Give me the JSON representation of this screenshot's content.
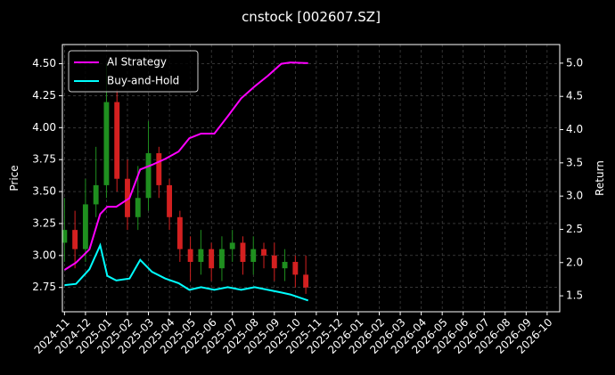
{
  "chart_data": {
    "type": "candlestick-with-returns",
    "title": "cnstock [002607.SZ]",
    "ylabel": "Price",
    "y2label": "Return",
    "grid": true,
    "legend": "upper left",
    "xlim": [
      -0.1,
      23.6
    ],
    "xticks": [
      {
        "value": 0,
        "label": "2024-11"
      },
      {
        "value": 1,
        "label": "2024-12"
      },
      {
        "value": 2,
        "label": "2025-01"
      },
      {
        "value": 3,
        "label": "2025-02"
      },
      {
        "value": 4,
        "label": "2025-03"
      },
      {
        "value": 5,
        "label": "2025-04"
      },
      {
        "value": 6,
        "label": "2025-05"
      },
      {
        "value": 7,
        "label": "2025-06"
      },
      {
        "value": 8,
        "label": "2025-07"
      },
      {
        "value": 9,
        "label": "2025-08"
      },
      {
        "value": 10,
        "label": "2025-09"
      },
      {
        "value": 11,
        "label": "2025-10"
      },
      {
        "value": 12,
        "label": "2025-11"
      },
      {
        "value": 13,
        "label": "2025-12"
      },
      {
        "value": 14,
        "label": "2026-01"
      },
      {
        "value": 15,
        "label": "2026-02"
      },
      {
        "value": 16,
        "label": "2026-03"
      },
      {
        "value": 17,
        "label": "2026-04"
      },
      {
        "value": 18,
        "label": "2026-05"
      },
      {
        "value": 19,
        "label": "2026-06"
      },
      {
        "value": 20,
        "label": "2026-07"
      },
      {
        "value": 21,
        "label": "2026-08"
      },
      {
        "value": 22,
        "label": "2026-09"
      },
      {
        "value": 23,
        "label": "2026-10"
      }
    ],
    "ylim": [
      2.56,
      4.65
    ],
    "yticks": [
      2.75,
      {
        "value": 3.0,
        "label": "3.00"
      },
      3.25,
      {
        "value": 3.5,
        "label": "3.50"
      },
      3.75,
      {
        "value": 4.0,
        "label": "4.00"
      },
      4.25,
      {
        "value": 4.5,
        "label": "4.50"
      }
    ],
    "y2lim": [
      1.26,
      5.28
    ],
    "y2ticks": [
      1.5,
      {
        "value": 2.0,
        "label": "2.0"
      },
      2.5,
      {
        "value": 3.0,
        "label": "3.0"
      },
      3.5,
      {
        "value": 4.0,
        "label": "4.0"
      },
      4.5,
      {
        "value": 5.0,
        "label": "5.0"
      }
    ],
    "candles": {
      "up_color": "#1f8f1f",
      "down_color": "#d42020",
      "x": [
        0,
        0.5,
        1,
        1.5,
        2,
        2.5,
        3,
        3.5,
        4,
        4.5,
        5,
        5.5,
        6,
        6.5,
        7,
        7.5,
        8,
        8.5,
        9,
        9.5,
        10,
        10.5,
        11,
        11.5
      ],
      "open": [
        3.1,
        3.2,
        3.05,
        3.4,
        3.55,
        4.2,
        3.6,
        3.3,
        3.45,
        3.8,
        3.55,
        3.3,
        3.05,
        2.95,
        3.05,
        2.9,
        3.05,
        3.1,
        2.95,
        3.05,
        3.0,
        2.9,
        2.95,
        2.85
      ],
      "high": [
        3.45,
        3.35,
        3.6,
        3.85,
        4.5,
        4.3,
        3.75,
        3.7,
        4.05,
        3.85,
        3.6,
        3.35,
        3.15,
        3.2,
        3.1,
        3.15,
        3.2,
        3.15,
        3.15,
        3.1,
        3.1,
        3.05,
        3.0,
        3.0
      ],
      "low": [
        2.95,
        2.9,
        2.95,
        3.3,
        3.45,
        3.5,
        3.2,
        3.2,
        3.35,
        3.45,
        3.2,
        2.95,
        2.8,
        2.85,
        2.8,
        2.8,
        2.95,
        2.85,
        2.85,
        2.9,
        2.8,
        2.8,
        2.75,
        2.7
      ],
      "close": [
        3.2,
        3.05,
        3.4,
        3.55,
        4.2,
        3.6,
        3.3,
        3.45,
        3.8,
        3.55,
        3.3,
        3.05,
        2.95,
        3.05,
        2.9,
        3.05,
        3.1,
        2.95,
        3.05,
        3.0,
        2.9,
        2.95,
        2.85,
        2.75
      ]
    },
    "series": [
      {
        "name": "AI Strategy",
        "color": "#ff00ff",
        "axis": "y2",
        "x": [
          0,
          0.55,
          1.19,
          1.7,
          2.04,
          2.47,
          3.1,
          3.61,
          4.17,
          4.8,
          5.44,
          5.95,
          6.51,
          7.14,
          7.78,
          8.42,
          9.06,
          9.69,
          10.33,
          10.76,
          11.61
        ],
        "values": [
          1.89,
          2.0,
          2.2,
          2.73,
          2.84,
          2.84,
          2.97,
          3.4,
          3.47,
          3.56,
          3.67,
          3.87,
          3.94,
          3.94,
          4.2,
          4.47,
          4.65,
          4.81,
          4.99,
          5.01,
          5.0
        ]
      },
      {
        "name": "Buy-and-Hold",
        "color": "#00ffff",
        "axis": "y2",
        "x": [
          0,
          0.55,
          1.19,
          1.7,
          2.04,
          2.47,
          3.1,
          3.61,
          4.17,
          4.8,
          5.44,
          5.95,
          6.51,
          7.14,
          7.78,
          8.42,
          9.06,
          9.69,
          10.33,
          10.76,
          11.61
        ],
        "values": [
          1.66,
          1.68,
          1.9,
          2.26,
          1.8,
          1.73,
          1.76,
          2.04,
          1.86,
          1.76,
          1.69,
          1.59,
          1.63,
          1.59,
          1.63,
          1.59,
          1.63,
          1.59,
          1.55,
          1.52,
          1.43
        ]
      }
    ]
  }
}
